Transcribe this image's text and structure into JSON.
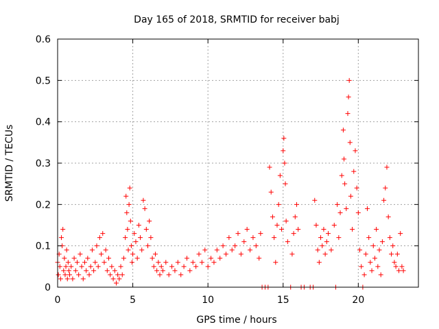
{
  "chart_data": {
    "type": "scatter",
    "title": "Day 165 of 2018, SRMTID for receiver babj",
    "xlabel": "GPS time / hours",
    "ylabel": "SRMTID / TECUs",
    "xlim": [
      0,
      24
    ],
    "ylim": [
      0,
      0.6
    ],
    "xticks": [
      0,
      5,
      10,
      15,
      20
    ],
    "xtick_labels": [
      "0",
      "5",
      "10",
      "15",
      "20"
    ],
    "yticks": [
      0,
      0.1,
      0.2,
      0.3,
      0.4,
      0.5,
      0.6
    ],
    "ytick_labels": [
      "0",
      "0.1",
      "0.2",
      "0.3",
      "0.4",
      "0.5",
      "0.6"
    ],
    "grid": true,
    "marker": "+",
    "color": "#ff0000",
    "series": [
      {
        "name": "SRMTID",
        "points": [
          [
            0.0,
            0.06
          ],
          [
            0.05,
            0.03
          ],
          [
            0.1,
            0.08
          ],
          [
            0.15,
            0.05
          ],
          [
            0.2,
            0.02
          ],
          [
            0.25,
            0.12
          ],
          [
            0.3,
            0.1
          ],
          [
            0.35,
            0.14
          ],
          [
            0.4,
            0.04
          ],
          [
            0.45,
            0.07
          ],
          [
            0.5,
            0.03
          ],
          [
            0.55,
            0.05
          ],
          [
            0.6,
            0.09
          ],
          [
            0.65,
            0.02
          ],
          [
            0.7,
            0.06
          ],
          [
            0.75,
            0.04
          ],
          [
            0.8,
            0.03
          ],
          [
            0.9,
            0.05
          ],
          [
            1.0,
            0.02
          ],
          [
            1.1,
            0.07
          ],
          [
            1.2,
            0.04
          ],
          [
            1.3,
            0.06
          ],
          [
            1.4,
            0.03
          ],
          [
            1.5,
            0.08
          ],
          [
            1.6,
            0.05
          ],
          [
            1.7,
            0.02
          ],
          [
            1.8,
            0.06
          ],
          [
            1.9,
            0.04
          ],
          [
            2.0,
            0.07
          ],
          [
            2.1,
            0.03
          ],
          [
            2.2,
            0.05
          ],
          [
            2.3,
            0.09
          ],
          [
            2.4,
            0.04
          ],
          [
            2.5,
            0.06
          ],
          [
            2.6,
            0.1
          ],
          [
            2.7,
            0.05
          ],
          [
            2.8,
            0.12
          ],
          [
            2.9,
            0.08
          ],
          [
            3.0,
            0.13
          ],
          [
            3.1,
            0.06
          ],
          [
            3.2,
            0.09
          ],
          [
            3.3,
            0.04
          ],
          [
            3.4,
            0.07
          ],
          [
            3.5,
            0.03
          ],
          [
            3.6,
            0.05
          ],
          [
            3.7,
            0.02
          ],
          [
            3.8,
            0.04
          ],
          [
            3.9,
            0.01
          ],
          [
            4.0,
            0.03
          ],
          [
            4.1,
            0.02
          ],
          [
            4.2,
            0.05
          ],
          [
            4.3,
            0.03
          ],
          [
            4.4,
            0.07
          ],
          [
            4.5,
            0.12
          ],
          [
            4.55,
            0.22
          ],
          [
            4.6,
            0.18
          ],
          [
            4.65,
            0.14
          ],
          [
            4.7,
            0.09
          ],
          [
            4.75,
            0.2
          ],
          [
            4.8,
            0.24
          ],
          [
            4.85,
            0.16
          ],
          [
            4.9,
            0.1
          ],
          [
            4.95,
            0.06
          ],
          [
            5.0,
            0.08
          ],
          [
            5.1,
            0.13
          ],
          [
            5.2,
            0.11
          ],
          [
            5.3,
            0.07
          ],
          [
            5.4,
            0.15
          ],
          [
            5.5,
            0.12
          ],
          [
            5.6,
            0.09
          ],
          [
            5.7,
            0.21
          ],
          [
            5.8,
            0.19
          ],
          [
            5.9,
            0.14
          ],
          [
            6.0,
            0.1
          ],
          [
            6.1,
            0.16
          ],
          [
            6.2,
            0.12
          ],
          [
            6.3,
            0.07
          ],
          [
            6.4,
            0.05
          ],
          [
            6.5,
            0.08
          ],
          [
            6.6,
            0.04
          ],
          [
            6.7,
            0.06
          ],
          [
            6.8,
            0.03
          ],
          [
            6.9,
            0.05
          ],
          [
            7.0,
            0.04
          ],
          [
            7.2,
            0.06
          ],
          [
            7.4,
            0.03
          ],
          [
            7.6,
            0.05
          ],
          [
            7.8,
            0.04
          ],
          [
            8.0,
            0.06
          ],
          [
            8.2,
            0.03
          ],
          [
            8.4,
            0.05
          ],
          [
            8.6,
            0.07
          ],
          [
            8.8,
            0.04
          ],
          [
            9.0,
            0.06
          ],
          [
            9.2,
            0.05
          ],
          [
            9.4,
            0.08
          ],
          [
            9.6,
            0.06
          ],
          [
            9.8,
            0.09
          ],
          [
            10.0,
            0.05
          ],
          [
            10.2,
            0.07
          ],
          [
            10.4,
            0.06
          ],
          [
            10.6,
            0.09
          ],
          [
            10.8,
            0.07
          ],
          [
            11.0,
            0.1
          ],
          [
            11.2,
            0.08
          ],
          [
            11.4,
            0.12
          ],
          [
            11.6,
            0.09
          ],
          [
            11.8,
            0.1
          ],
          [
            12.0,
            0.13
          ],
          [
            12.2,
            0.08
          ],
          [
            12.4,
            0.11
          ],
          [
            12.6,
            0.14
          ],
          [
            12.8,
            0.09
          ],
          [
            13.0,
            0.12
          ],
          [
            13.2,
            0.1
          ],
          [
            13.4,
            0.07
          ],
          [
            13.5,
            0.13
          ],
          [
            13.6,
            0.0
          ],
          [
            13.8,
            0.0
          ],
          [
            14.0,
            0.0
          ],
          [
            14.1,
            0.29
          ],
          [
            14.2,
            0.23
          ],
          [
            14.3,
            0.17
          ],
          [
            14.4,
            0.12
          ],
          [
            14.5,
            0.06
          ],
          [
            14.6,
            0.15
          ],
          [
            14.7,
            0.2
          ],
          [
            14.8,
            0.27
          ],
          [
            14.9,
            0.14
          ],
          [
            15.0,
            0.33
          ],
          [
            15.05,
            0.36
          ],
          [
            15.1,
            0.3
          ],
          [
            15.15,
            0.25
          ],
          [
            15.2,
            0.16
          ],
          [
            15.3,
            0.11
          ],
          [
            15.5,
            0.0
          ],
          [
            15.6,
            0.08
          ],
          [
            15.7,
            0.13
          ],
          [
            15.8,
            0.17
          ],
          [
            15.9,
            0.2
          ],
          [
            16.0,
            0.14
          ],
          [
            16.2,
            0.0
          ],
          [
            16.4,
            0.0
          ],
          [
            16.8,
            0.0
          ],
          [
            17.0,
            0.0
          ],
          [
            17.1,
            0.21
          ],
          [
            17.2,
            0.15
          ],
          [
            17.3,
            0.09
          ],
          [
            17.4,
            0.06
          ],
          [
            17.5,
            0.12
          ],
          [
            17.6,
            0.1
          ],
          [
            17.7,
            0.14
          ],
          [
            17.8,
            0.08
          ],
          [
            17.9,
            0.11
          ],
          [
            18.0,
            0.13
          ],
          [
            18.2,
            0.09
          ],
          [
            18.4,
            0.15
          ],
          [
            18.5,
            0.0
          ],
          [
            18.6,
            0.2
          ],
          [
            18.7,
            0.12
          ],
          [
            18.8,
            0.18
          ],
          [
            18.9,
            0.27
          ],
          [
            19.0,
            0.38
          ],
          [
            19.05,
            0.31
          ],
          [
            19.1,
            0.25
          ],
          [
            19.2,
            0.19
          ],
          [
            19.3,
            0.42
          ],
          [
            19.35,
            0.46
          ],
          [
            19.4,
            0.5
          ],
          [
            19.45,
            0.35
          ],
          [
            19.5,
            0.22
          ],
          [
            19.6,
            0.14
          ],
          [
            19.7,
            0.28
          ],
          [
            19.8,
            0.33
          ],
          [
            19.9,
            0.24
          ],
          [
            20.0,
            0.18
          ],
          [
            20.1,
            0.09
          ],
          [
            20.2,
            0.05
          ],
          [
            20.3,
            0.0
          ],
          [
            20.4,
            0.03
          ],
          [
            20.5,
            0.08
          ],
          [
            20.6,
            0.19
          ],
          [
            20.7,
            0.12
          ],
          [
            20.8,
            0.06
          ],
          [
            20.9,
            0.04
          ],
          [
            21.0,
            0.1
          ],
          [
            21.1,
            0.07
          ],
          [
            21.2,
            0.14
          ],
          [
            21.3,
            0.05
          ],
          [
            21.4,
            0.09
          ],
          [
            21.5,
            0.03
          ],
          [
            21.6,
            0.11
          ],
          [
            21.7,
            0.21
          ],
          [
            21.8,
            0.24
          ],
          [
            21.9,
            0.29
          ],
          [
            22.0,
            0.17
          ],
          [
            22.1,
            0.12
          ],
          [
            22.2,
            0.08
          ],
          [
            22.3,
            0.1
          ],
          [
            22.4,
            0.06
          ],
          [
            22.5,
            0.05
          ],
          [
            22.6,
            0.08
          ],
          [
            22.7,
            0.04
          ],
          [
            22.8,
            0.13
          ],
          [
            22.9,
            0.05
          ],
          [
            23.0,
            0.04
          ]
        ]
      }
    ]
  }
}
